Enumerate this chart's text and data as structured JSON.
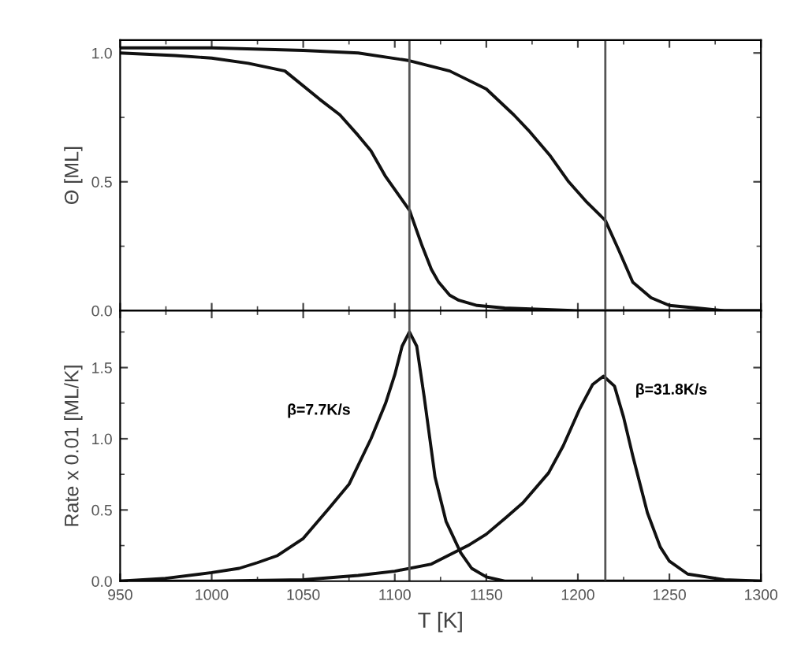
{
  "chart_data": [
    {
      "type": "line",
      "ylabel": "Θ [ML]",
      "xlim": [
        950,
        1300
      ],
      "xticks": [
        950,
        1000,
        1050,
        1100,
        1150,
        1200,
        1250,
        1300
      ],
      "ylim": [
        0,
        1.05
      ],
      "yticks": [
        {
          "value": 0,
          "label": "0.0"
        },
        {
          "value": 0.5,
          "label": "0.5"
        },
        {
          "value": 1,
          "label": "1.0"
        }
      ],
      "tick_labels": "y",
      "grid": false,
      "legend": false,
      "ref_lines": [
        {
          "axis": "x",
          "value": 1108,
          "color": "#555555"
        },
        {
          "axis": "x",
          "value": 1215,
          "color": "#555555"
        }
      ],
      "series": [
        {
          "color": "#111111",
          "x": [
            950,
            980,
            1000,
            1020,
            1040,
            1059,
            1070,
            1080,
            1087,
            1095,
            1102,
            1108,
            1115,
            1120,
            1124,
            1130,
            1135,
            1145,
            1160,
            1180,
            1200,
            1250,
            1300
          ],
          "values": [
            1.0,
            0.99,
            0.98,
            0.96,
            0.93,
            0.82,
            0.76,
            0.68,
            0.62,
            0.52,
            0.45,
            0.39,
            0.25,
            0.16,
            0.11,
            0.06,
            0.04,
            0.02,
            0.01,
            0.005,
            0.0,
            0.0,
            0.0
          ]
        },
        {
          "color": "#111111",
          "x": [
            950,
            1000,
            1050,
            1080,
            1108,
            1130,
            1150,
            1165,
            1173,
            1185,
            1195,
            1205,
            1215,
            1222,
            1230,
            1240,
            1250,
            1265,
            1280,
            1300
          ],
          "values": [
            1.02,
            1.02,
            1.01,
            1.0,
            0.97,
            0.93,
            0.86,
            0.76,
            0.7,
            0.6,
            0.5,
            0.42,
            0.35,
            0.24,
            0.11,
            0.05,
            0.02,
            0.01,
            0.0,
            0.0
          ]
        }
      ]
    },
    {
      "type": "line",
      "xlabel": "T [K]",
      "ylabel": "Rate x 0.01 [ML/K]",
      "xlim": [
        950,
        1300
      ],
      "xticks": [
        950,
        1000,
        1050,
        1100,
        1150,
        1200,
        1250,
        1300
      ],
      "ylim": [
        0,
        1.9
      ],
      "yticks": [
        {
          "value": 0,
          "label": "0.0"
        },
        {
          "value": 0.5,
          "label": "0.5"
        },
        {
          "value": 1,
          "label": "1.0"
        },
        {
          "value": 1.5,
          "label": "1.5"
        }
      ],
      "grid": false,
      "legend": false,
      "ref_lines": [
        {
          "axis": "x",
          "value": 1108,
          "color": "#555555"
        },
        {
          "axis": "x",
          "value": 1215,
          "color": "#555555"
        }
      ],
      "annotations": [
        "β=7.7K/s",
        "β=31.8K/s"
      ],
      "series": [
        {
          "color": "#111111",
          "x": [
            950,
            975,
            1000,
            1015,
            1025,
            1036,
            1050,
            1064,
            1075,
            1087,
            1095,
            1100,
            1104,
            1108,
            1112,
            1116,
            1122,
            1128,
            1136,
            1142,
            1150,
            1160,
            1180,
            1300
          ],
          "values": [
            0.0,
            0.02,
            0.06,
            0.09,
            0.13,
            0.18,
            0.3,
            0.51,
            0.68,
            1.0,
            1.25,
            1.45,
            1.65,
            1.75,
            1.65,
            1.3,
            0.73,
            0.42,
            0.2,
            0.09,
            0.03,
            0.0,
            0.0,
            0.0
          ]
        },
        {
          "color": "#111111",
          "x": [
            950,
            1000,
            1050,
            1080,
            1100,
            1120,
            1140,
            1150,
            1161,
            1170,
            1184,
            1192,
            1201,
            1208,
            1214,
            1220,
            1225,
            1230,
            1238,
            1245,
            1250,
            1260,
            1280,
            1300
          ],
          "values": [
            0.0,
            0.0,
            0.01,
            0.04,
            0.07,
            0.12,
            0.25,
            0.33,
            0.45,
            0.55,
            0.76,
            0.95,
            1.21,
            1.38,
            1.44,
            1.37,
            1.15,
            0.88,
            0.48,
            0.24,
            0.14,
            0.05,
            0.01,
            0.0
          ]
        }
      ]
    }
  ]
}
